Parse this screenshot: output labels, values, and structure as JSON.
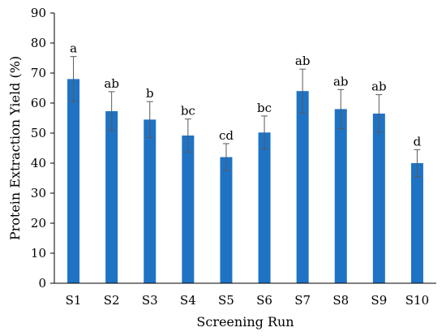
{
  "chart_data": {
    "type": "bar",
    "xlabel": "Screening Run",
    "ylabel": "Protein Extraction Yield (%)",
    "ylim": [
      0,
      90
    ],
    "yticks": [
      0,
      10,
      20,
      30,
      40,
      50,
      60,
      70,
      80,
      90
    ],
    "grid": false,
    "categories": [
      "S1",
      "S2",
      "S3",
      "S4",
      "S5",
      "S6",
      "S7",
      "S8",
      "S9",
      "S10"
    ],
    "values": [
      68,
      57.3,
      54.5,
      49.2,
      42,
      50.2,
      64,
      58,
      56.5,
      40
    ],
    "errors": [
      7.5,
      6.5,
      6,
      5.5,
      4.5,
      5.5,
      7.3,
      6.5,
      6.3,
      4.5
    ],
    "significance_labels": [
      "a",
      "ab",
      "b",
      "bc",
      "cd",
      "bc",
      "ab",
      "ab",
      "ab",
      "d"
    ],
    "bar_color": "#1f73c5",
    "error_bar_color": "#595959",
    "axis_color": "#000000"
  }
}
